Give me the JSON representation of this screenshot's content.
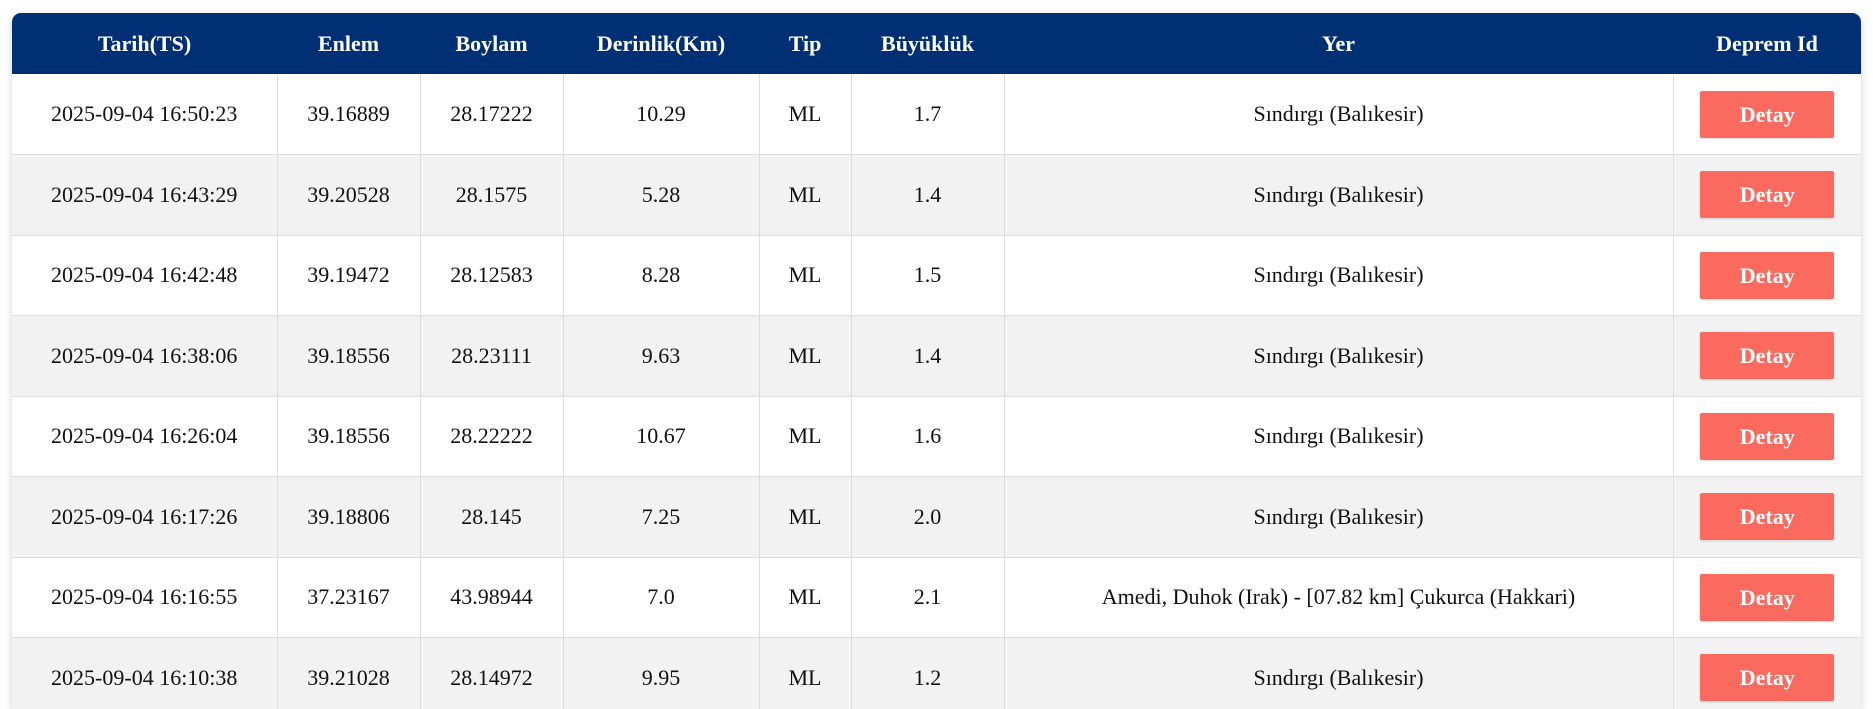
{
  "table": {
    "headers": [
      "Tarih(TS)",
      "Enlem",
      "Boylam",
      "Derinlik(Km)",
      "Tip",
      "Büyüklük",
      "Yer",
      "Deprem Id"
    ],
    "button_label": "Detay",
    "rows": [
      [
        "2025-09-04 16:50:23",
        "39.16889",
        "28.17222",
        "10.29",
        "ML",
        "1.7",
        "Sındırgı (Balıkesir)"
      ],
      [
        "2025-09-04 16:43:29",
        "39.20528",
        "28.1575",
        "5.28",
        "ML",
        "1.4",
        "Sındırgı (Balıkesir)"
      ],
      [
        "2025-09-04 16:42:48",
        "39.19472",
        "28.12583",
        "8.28",
        "ML",
        "1.5",
        "Sındırgı (Balıkesir)"
      ],
      [
        "2025-09-04 16:38:06",
        "39.18556",
        "28.23111",
        "9.63",
        "ML",
        "1.4",
        "Sındırgı (Balıkesir)"
      ],
      [
        "2025-09-04 16:26:04",
        "39.18556",
        "28.22222",
        "10.67",
        "ML",
        "1.6",
        "Sındırgı (Balıkesir)"
      ],
      [
        "2025-09-04 16:17:26",
        "39.18806",
        "28.145",
        "7.25",
        "ML",
        "2.0",
        "Sındırgı (Balıkesir)"
      ],
      [
        "2025-09-04 16:16:55",
        "37.23167",
        "43.98944",
        "7.0",
        "ML",
        "2.1",
        "Amedi, Duhok (Irak) - [07.82 km] Çukurca (Hakkari)"
      ],
      [
        "2025-09-04 16:10:38",
        "39.21028",
        "28.14972",
        "9.95",
        "ML",
        "1.2",
        "Sındırgı (Balıkesir)"
      ]
    ]
  },
  "colors": {
    "header_bg": "#002f74",
    "button_bg": "#fa6a5f",
    "stripe_bg": "#f2f2f2"
  }
}
